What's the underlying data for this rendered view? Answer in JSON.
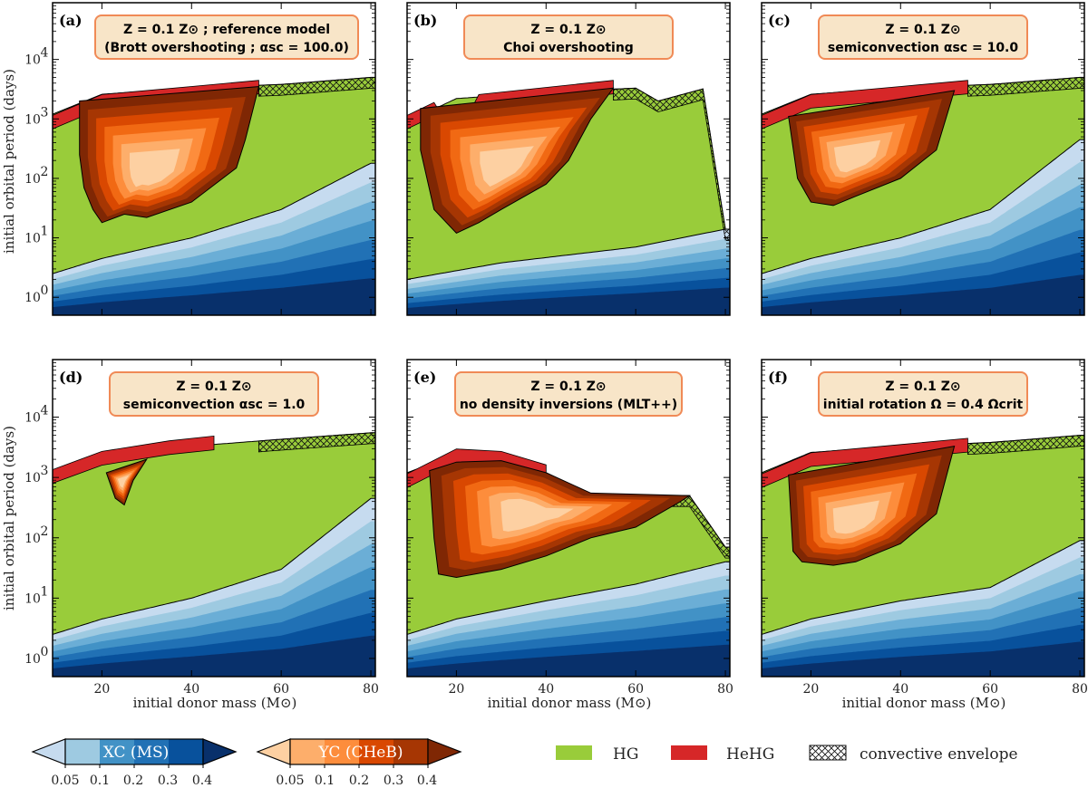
{
  "figure": {
    "x_axis_label": "initial donor mass (M⊙)",
    "y_axis_label": "initial orbital period (days)",
    "x_ticks": [
      "20",
      "40",
      "60",
      "80"
    ],
    "y_ticks": [
      "10",
      "10",
      "10",
      "10",
      "10"
    ],
    "y_tick_exponents": [
      "0",
      "1",
      "2",
      "3",
      "4"
    ],
    "panels": [
      {
        "tag": "(a)",
        "line1": "Z = 0.1 Z⊙ ;  reference model",
        "line2": "(Brott overshooting ;  αsc = 100.0)"
      },
      {
        "tag": "(b)",
        "line1": "Z = 0.1 Z⊙",
        "line2": "Choi overshooting"
      },
      {
        "tag": "(c)",
        "line1": "Z = 0.1 Z⊙",
        "line2": "semiconvection  αsc = 10.0"
      },
      {
        "tag": "(d)",
        "line1": "Z = 0.1 Z⊙",
        "line2": "semiconvection  αsc = 1.0"
      },
      {
        "tag": "(e)",
        "line1": "Z = 0.1 Z⊙",
        "line2": "no density inversions (MLT++)"
      },
      {
        "tag": "(f)",
        "line1": "Z = 0.1 Z⊙",
        "line2": "initial rotation  Ω = 0.4 Ωcrit"
      }
    ]
  },
  "legend": {
    "xc_label": "XC (MS)",
    "yc_label": "YC (CHeB)",
    "colorbar_ticks": [
      "0.05",
      "0.1",
      "0.2",
      "0.3",
      "0.4"
    ],
    "hg_label": "HG",
    "hehg_label": "HeHG",
    "convective_label": "convective envelope"
  },
  "colors": {
    "hg": "#99cc3a",
    "hehg": "#d62728",
    "ms": [
      "#c6dbef",
      "#9ecae1",
      "#6baed6",
      "#4292c6",
      "#2171b5",
      "#08519c",
      "#08306b"
    ],
    "cheb": [
      "#fdd0a2",
      "#fdae6b",
      "#fd8d3c",
      "#f16913",
      "#d94801",
      "#a63603",
      "#7f2704"
    ],
    "box_fill": "#f8e5c8",
    "box_edge": "#f08a56"
  },
  "chart_data": {
    "type": "area",
    "title": "",
    "xlabel": "initial donor mass (M⊙)",
    "ylabel": "initial orbital period (days)",
    "xlim": [
      9,
      81
    ],
    "ylim": [
      0.5,
      90000
    ],
    "yscale": "log",
    "grid": false,
    "panels": [
      {
        "tag": "(a)",
        "ms_upper": [
          [
            9,
            2.5
          ],
          [
            20,
            4.5
          ],
          [
            40,
            10
          ],
          [
            60,
            30
          ],
          [
            80,
            180
          ]
        ],
        "hg_upper": [
          [
            9,
            1200
          ],
          [
            20,
            2600
          ],
          [
            40,
            3300
          ],
          [
            60,
            3800
          ],
          [
            80,
            5000
          ]
        ],
        "cheb_region": [
          [
            15,
            250
          ],
          [
            16,
            70
          ],
          [
            18,
            30
          ],
          [
            20,
            18
          ],
          [
            25,
            25
          ],
          [
            30,
            22
          ],
          [
            40,
            40
          ],
          [
            50,
            150
          ],
          [
            52,
            450
          ],
          [
            55,
            3500
          ],
          [
            15,
            2000
          ]
        ],
        "hehg_band": [
          [
            9,
            850
          ],
          [
            20,
            1900
          ],
          [
            40,
            2600
          ],
          [
            55,
            3300
          ]
        ]
      },
      {
        "tag": "(b)",
        "ms_upper": [
          [
            9,
            2.0
          ],
          [
            30,
            3.8
          ],
          [
            60,
            7
          ],
          [
            80,
            14
          ]
        ],
        "hg_upper": [
          [
            9,
            900
          ],
          [
            20,
            2200
          ],
          [
            40,
            2800
          ],
          [
            60,
            3300
          ],
          [
            65,
            2000
          ],
          [
            75,
            3200
          ],
          [
            80,
            14
          ]
        ],
        "cheb_region": [
          [
            12,
            300
          ],
          [
            15,
            30
          ],
          [
            20,
            12
          ],
          [
            25,
            18
          ],
          [
            30,
            30
          ],
          [
            40,
            80
          ],
          [
            45,
            200
          ],
          [
            50,
            1000
          ],
          [
            55,
            3300
          ],
          [
            12,
            1500
          ]
        ],
        "hehg_band": [
          [
            9,
            850
          ],
          [
            15,
            1400
          ],
          [
            20,
            350
          ],
          [
            25,
            1900
          ],
          [
            55,
            3300
          ]
        ]
      },
      {
        "tag": "(c)",
        "ms_upper": [
          [
            9,
            2.5
          ],
          [
            20,
            4.5
          ],
          [
            40,
            10
          ],
          [
            60,
            30
          ],
          [
            80,
            450
          ]
        ],
        "hg_upper": [
          [
            9,
            1200
          ],
          [
            20,
            2600
          ],
          [
            40,
            3300
          ],
          [
            60,
            3800
          ],
          [
            80,
            5000
          ]
        ],
        "cheb_region": [
          [
            15,
            1100
          ],
          [
            17,
            100
          ],
          [
            20,
            40
          ],
          [
            25,
            35
          ],
          [
            30,
            50
          ],
          [
            40,
            100
          ],
          [
            48,
            300
          ],
          [
            52,
            3000
          ],
          [
            15,
            1100
          ]
        ],
        "hehg_band": [
          [
            9,
            850
          ],
          [
            20,
            1900
          ],
          [
            40,
            2600
          ],
          [
            55,
            3300
          ]
        ]
      },
      {
        "tag": "(d)",
        "ms_upper": [
          [
            9,
            2.5
          ],
          [
            20,
            4.5
          ],
          [
            40,
            10
          ],
          [
            60,
            30
          ],
          [
            80,
            450
          ]
        ],
        "hg_upper": [
          [
            9,
            1300
          ],
          [
            20,
            2300
          ],
          [
            40,
            3300
          ],
          [
            60,
            4300
          ],
          [
            80,
            5500
          ]
        ],
        "cheb_region": [
          [
            21,
            1200
          ],
          [
            23,
            450
          ],
          [
            25,
            350
          ],
          [
            27,
            900
          ],
          [
            30,
            2000
          ],
          [
            21,
            1200
          ]
        ],
        "hehg_band": [
          [
            9,
            1000
          ],
          [
            20,
            2000
          ],
          [
            35,
            3000
          ],
          [
            45,
            3600
          ]
        ]
      },
      {
        "tag": "(e)",
        "ms_upper": [
          [
            9,
            2.5
          ],
          [
            20,
            4.5
          ],
          [
            40,
            9
          ],
          [
            60,
            17
          ],
          [
            80,
            40
          ]
        ],
        "hg_upper": [
          [
            9,
            1200
          ],
          [
            20,
            2400
          ],
          [
            30,
            2000
          ],
          [
            40,
            1200
          ],
          [
            50,
            500
          ],
          [
            72,
            500
          ],
          [
            80,
            70
          ]
        ],
        "cheb_region": [
          [
            14,
            1300
          ],
          [
            15,
            100
          ],
          [
            16,
            25
          ],
          [
            20,
            22
          ],
          [
            30,
            30
          ],
          [
            40,
            50
          ],
          [
            50,
            100
          ],
          [
            60,
            150
          ],
          [
            70,
            400
          ],
          [
            72,
            500
          ],
          [
            50,
            550
          ],
          [
            40,
            1200
          ],
          [
            30,
            1900
          ],
          [
            20,
            1800
          ],
          [
            14,
            1300
          ]
        ],
        "hehg_band": [
          [
            9,
            850
          ],
          [
            20,
            2200
          ],
          [
            30,
            2000
          ],
          [
            40,
            1200
          ]
        ]
      },
      {
        "tag": "(f)",
        "ms_upper": [
          [
            9,
            2.5
          ],
          [
            20,
            4.5
          ],
          [
            40,
            9
          ],
          [
            60,
            15
          ],
          [
            80,
            90
          ]
        ],
        "hg_upper": [
          [
            9,
            1200
          ],
          [
            20,
            2600
          ],
          [
            40,
            3300
          ],
          [
            60,
            3800
          ],
          [
            80,
            5000
          ]
        ],
        "cheb_region": [
          [
            15,
            1100
          ],
          [
            16,
            60
          ],
          [
            18,
            40
          ],
          [
            25,
            35
          ],
          [
            30,
            40
          ],
          [
            40,
            80
          ],
          [
            48,
            250
          ],
          [
            52,
            3300
          ],
          [
            15,
            1100
          ]
        ],
        "hehg_band": [
          [
            9,
            850
          ],
          [
            20,
            1900
          ],
          [
            40,
            2600
          ],
          [
            55,
            3300
          ]
        ]
      }
    ],
    "colorbars": [
      {
        "name": "XC (MS)",
        "levels": [
          0.05,
          0.1,
          0.2,
          0.3,
          0.4
        ],
        "palette": "blue"
      },
      {
        "name": "YC (CHeB)",
        "levels": [
          0.05,
          0.1,
          0.2,
          0.3,
          0.4
        ],
        "palette": "orange"
      }
    ],
    "legend": [
      "HG",
      "HeHG",
      "convective envelope"
    ]
  }
}
